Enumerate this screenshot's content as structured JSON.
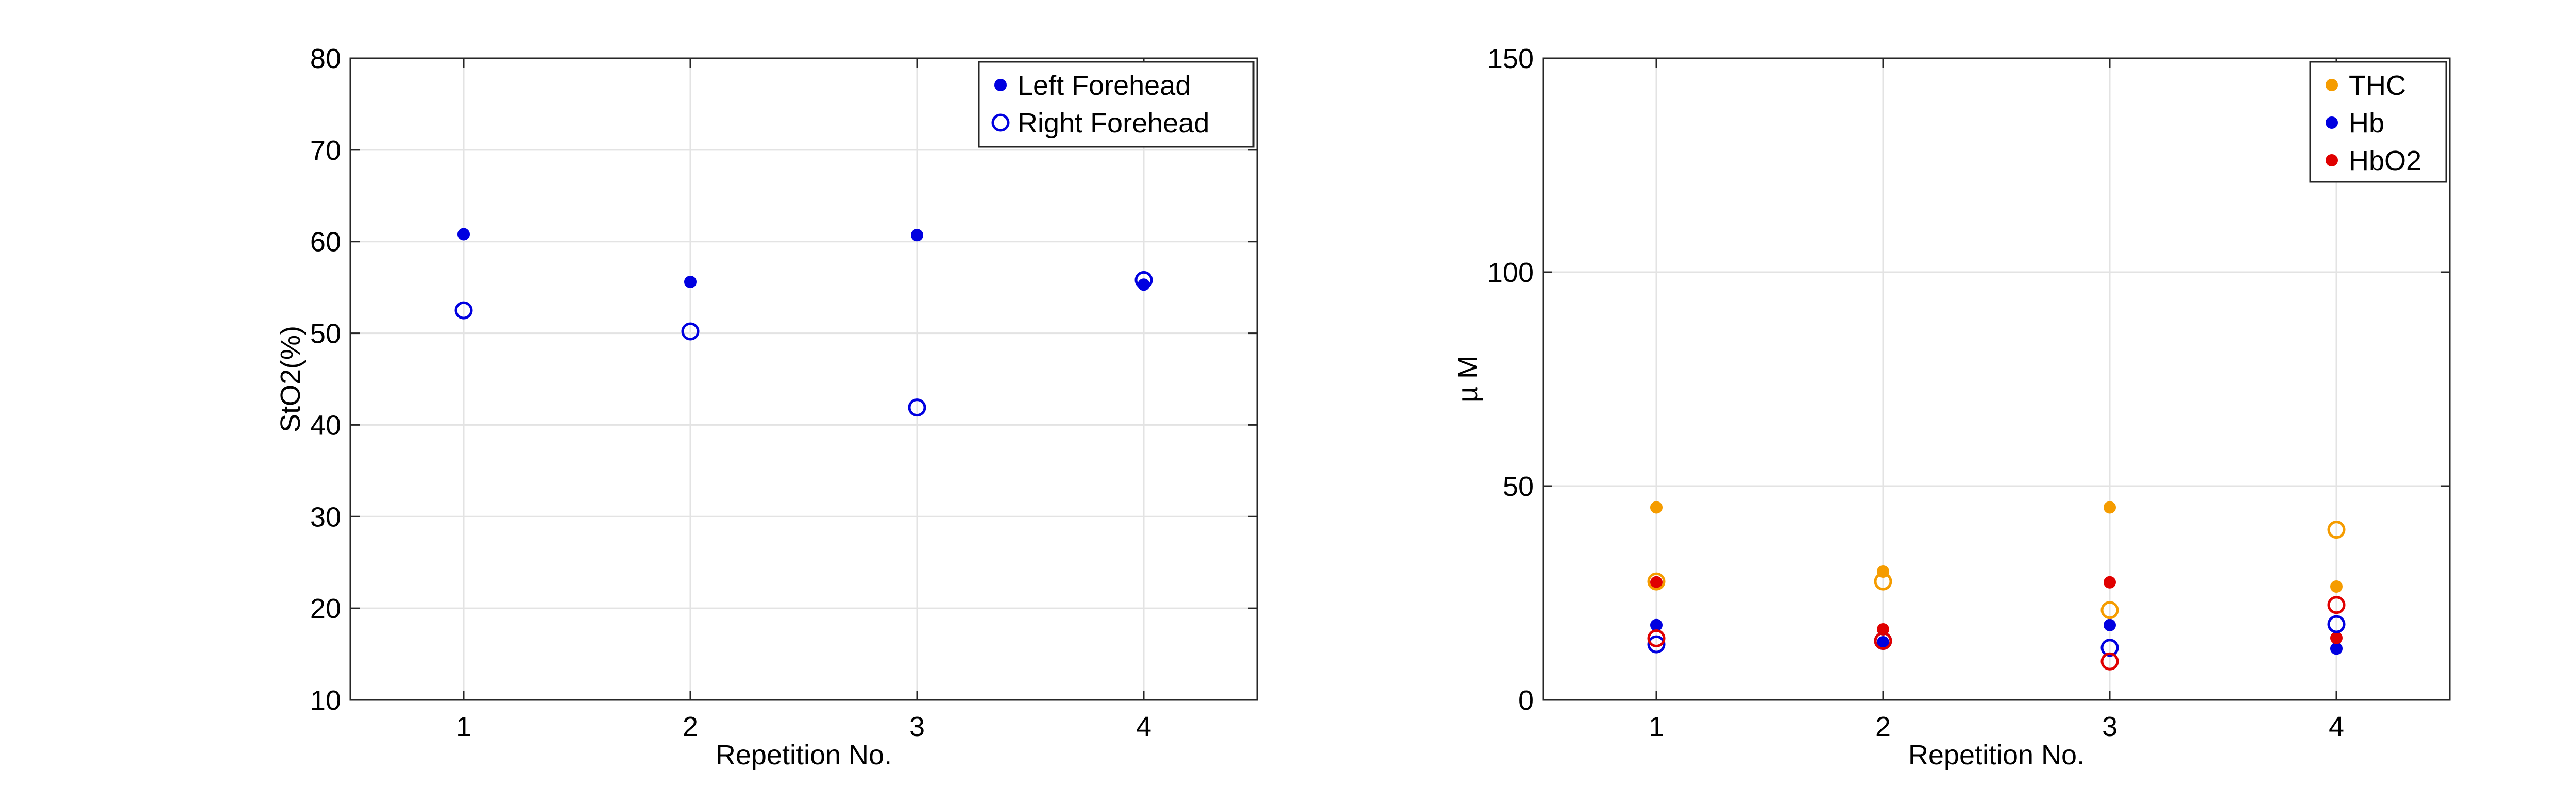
{
  "chart_data": [
    {
      "type": "scatter",
      "xlabel": "Repetition No.",
      "ylabel": "StO2(%)",
      "xlim": [
        0.5,
        4.5
      ],
      "ylim": [
        10,
        80
      ],
      "x_ticks": [
        1,
        2,
        3,
        4
      ],
      "y_ticks": [
        10,
        20,
        30,
        40,
        50,
        60,
        70,
        80
      ],
      "grid": true,
      "legend_position": "top-right",
      "series": [
        {
          "name": "Left Forehead",
          "marker": "filled",
          "color": "#0000e0",
          "x": [
            1,
            2,
            3,
            4
          ],
          "y": [
            60.8,
            55.6,
            60.7,
            55.3
          ]
        },
        {
          "name": "Right Forehead",
          "marker": "open",
          "color": "#0000e0",
          "x": [
            1,
            2,
            3,
            4
          ],
          "y": [
            52.5,
            50.2,
            41.9,
            55.8
          ]
        }
      ]
    },
    {
      "type": "scatter",
      "xlabel": "Repetition No.",
      "ylabel": "µ M",
      "xlim": [
        0.5,
        4.5
      ],
      "ylim": [
        0,
        150
      ],
      "x_ticks": [
        1,
        2,
        3,
        4
      ],
      "y_ticks": [
        0,
        50,
        100,
        150
      ],
      "grid": true,
      "legend_position": "top-right",
      "series": [
        {
          "name": "THC",
          "marker": "filled",
          "color": "#f59c00",
          "x": [
            1,
            2,
            3,
            4
          ],
          "y": [
            45.0,
            30.0,
            45.0,
            26.5
          ]
        },
        {
          "name": "Hb",
          "marker": "filled",
          "color": "#0000e0",
          "x": [
            1,
            2,
            3,
            4
          ],
          "y": [
            17.5,
            13.5,
            17.5,
            12.0
          ]
        },
        {
          "name": "HbO2",
          "marker": "filled",
          "color": "#e00000",
          "x": [
            1,
            2,
            3,
            4
          ],
          "y": [
            27.5,
            16.5,
            27.5,
            14.5
          ]
        },
        {
          "name": "",
          "marker": "open",
          "color": "#f59c00",
          "x": [
            1,
            2,
            3,
            4
          ],
          "y": [
            27.7,
            27.7,
            21.0,
            39.8
          ]
        },
        {
          "name": "",
          "marker": "open",
          "color": "#0000e0",
          "x": [
            1,
            2,
            3,
            4
          ],
          "y": [
            13.0,
            13.8,
            12.2,
            17.7
          ]
        },
        {
          "name": "",
          "marker": "open",
          "color": "#e00000",
          "x": [
            1,
            2,
            3,
            4
          ],
          "y": [
            14.4,
            13.8,
            9.0,
            22.2
          ]
        }
      ]
    }
  ]
}
